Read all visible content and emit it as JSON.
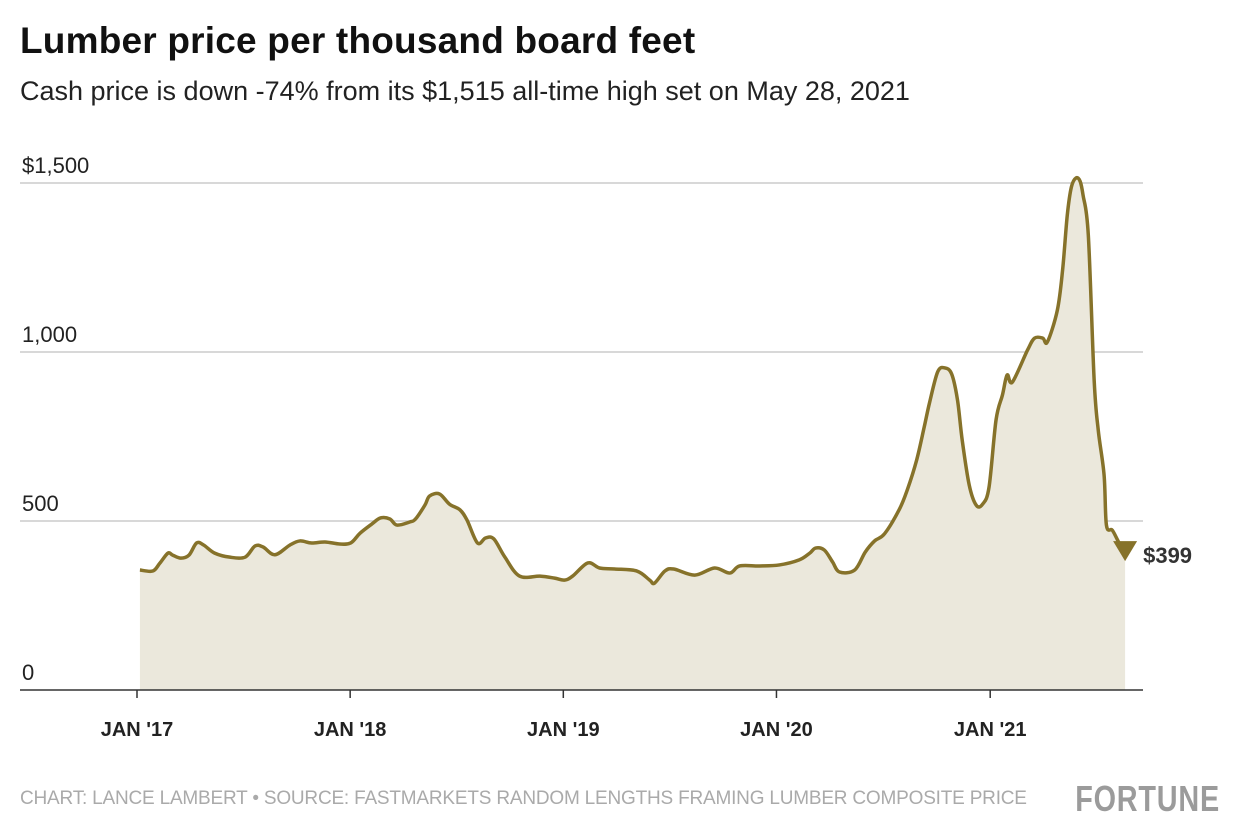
{
  "title": "Lumber price per thousand board feet",
  "subtitle": "Cash price is down -74% from its $1,515 all-time high set on May 28, 2021",
  "footer": "CHART: LANCE LAMBERT • SOURCE: FASTMARKETS RANDOM LENGTHS FRAMING LUMBER COMPOSITE PRICE",
  "logo": "FORTUNE",
  "colors": {
    "line": "#86722a",
    "fill": "#ebe8dc",
    "grid": "#cccccc",
    "axis": "#333333"
  },
  "chart_data": {
    "type": "area",
    "title": "Lumber price per thousand board feet",
    "ylim": [
      0,
      1500
    ],
    "yticks": [
      {
        "value": 0,
        "label": "0"
      },
      {
        "value": 500,
        "label": "500"
      },
      {
        "value": 1000,
        "label": "1,000"
      },
      {
        "value": 1500,
        "label": "$1,500"
      }
    ],
    "xticks": [
      {
        "date": "2017-01-01",
        "label": "JAN '17"
      },
      {
        "date": "2018-01-01",
        "label": "JAN '18"
      },
      {
        "date": "2019-01-01",
        "label": "JAN '19"
      },
      {
        "date": "2020-01-01",
        "label": "JAN '20"
      },
      {
        "date": "2021-01-01",
        "label": "JAN '21"
      }
    ],
    "grid": true,
    "end_label": "$399",
    "points": [
      [
        "2017-01-06",
        355
      ],
      [
        "2017-01-28",
        352
      ],
      [
        "2017-02-09",
        375
      ],
      [
        "2017-02-23",
        405
      ],
      [
        "2017-03-03",
        399
      ],
      [
        "2017-03-17",
        390
      ],
      [
        "2017-03-31",
        399
      ],
      [
        "2017-04-13",
        435
      ],
      [
        "2017-04-25",
        429
      ],
      [
        "2017-05-14",
        405
      ],
      [
        "2017-06-09",
        393
      ],
      [
        "2017-07-05",
        393
      ],
      [
        "2017-07-22",
        426
      ],
      [
        "2017-08-05",
        423
      ],
      [
        "2017-08-25",
        400
      ],
      [
        "2017-09-20",
        429
      ],
      [
        "2017-10-07",
        441
      ],
      [
        "2017-10-27",
        435
      ],
      [
        "2017-11-19",
        438
      ],
      [
        "2017-12-14",
        432
      ],
      [
        "2018-01-02",
        435
      ],
      [
        "2018-01-18",
        464
      ],
      [
        "2018-02-07",
        491
      ],
      [
        "2018-02-22",
        509
      ],
      [
        "2018-03-10",
        506
      ],
      [
        "2018-03-22",
        488
      ],
      [
        "2018-04-13",
        497
      ],
      [
        "2018-04-23",
        506
      ],
      [
        "2018-05-09",
        547
      ],
      [
        "2018-05-17",
        574
      ],
      [
        "2018-06-03",
        580
      ],
      [
        "2018-06-20",
        550
      ],
      [
        "2018-07-08",
        533
      ],
      [
        "2018-07-20",
        503
      ],
      [
        "2018-08-07",
        435
      ],
      [
        "2018-08-21",
        450
      ],
      [
        "2018-09-04",
        447
      ],
      [
        "2018-09-23",
        393
      ],
      [
        "2018-10-18",
        337
      ],
      [
        "2018-11-22",
        337
      ],
      [
        "2018-12-17",
        331
      ],
      [
        "2019-01-03",
        325
      ],
      [
        "2019-01-17",
        337
      ],
      [
        "2019-02-12",
        376
      ],
      [
        "2019-03-04",
        361
      ],
      [
        "2019-03-30",
        358
      ],
      [
        "2019-05-07",
        352
      ],
      [
        "2019-05-29",
        325
      ],
      [
        "2019-06-06",
        316
      ],
      [
        "2019-06-24",
        352
      ],
      [
        "2019-07-09",
        358
      ],
      [
        "2019-08-14",
        340
      ],
      [
        "2019-09-17",
        361
      ],
      [
        "2019-10-13",
        346
      ],
      [
        "2019-10-30",
        367
      ],
      [
        "2019-12-03",
        367
      ],
      [
        "2020-01-06",
        370
      ],
      [
        "2020-02-09",
        385
      ],
      [
        "2020-02-27",
        405
      ],
      [
        "2020-03-08",
        420
      ],
      [
        "2020-03-23",
        414
      ],
      [
        "2020-04-06",
        379
      ],
      [
        "2020-04-18",
        349
      ],
      [
        "2020-05-14",
        355
      ],
      [
        "2020-06-01",
        408
      ],
      [
        "2020-06-17",
        441
      ],
      [
        "2020-07-04",
        462
      ],
      [
        "2020-07-29",
        533
      ],
      [
        "2020-08-12",
        592
      ],
      [
        "2020-08-28",
        680
      ],
      [
        "2020-09-10",
        778
      ],
      [
        "2020-09-19",
        849
      ],
      [
        "2020-10-03",
        941
      ],
      [
        "2020-10-15",
        953
      ],
      [
        "2020-10-27",
        935
      ],
      [
        "2020-11-06",
        858
      ],
      [
        "2020-11-14",
        740
      ],
      [
        "2020-11-26",
        607
      ],
      [
        "2020-12-08",
        547
      ],
      [
        "2020-12-19",
        550
      ],
      [
        "2020-12-30",
        600
      ],
      [
        "2021-01-11",
        799
      ],
      [
        "2021-01-22",
        873
      ],
      [
        "2021-01-30",
        932
      ],
      [
        "2021-02-08",
        911
      ],
      [
        "2021-03-06",
        1006
      ],
      [
        "2021-03-18",
        1041
      ],
      [
        "2021-04-01",
        1041
      ],
      [
        "2021-04-09",
        1030
      ],
      [
        "2021-04-26",
        1124
      ],
      [
        "2021-05-05",
        1243
      ],
      [
        "2021-05-13",
        1405
      ],
      [
        "2021-05-20",
        1488
      ],
      [
        "2021-05-28",
        1515
      ],
      [
        "2021-06-04",
        1505
      ],
      [
        "2021-06-09",
        1464
      ],
      [
        "2021-06-18",
        1346
      ],
      [
        "2021-06-28",
        917
      ],
      [
        "2021-07-05",
        769
      ],
      [
        "2021-07-15",
        636
      ],
      [
        "2021-07-19",
        488
      ],
      [
        "2021-07-29",
        473
      ],
      [
        "2021-08-07",
        444
      ],
      [
        "2021-08-20",
        399
      ]
    ]
  }
}
